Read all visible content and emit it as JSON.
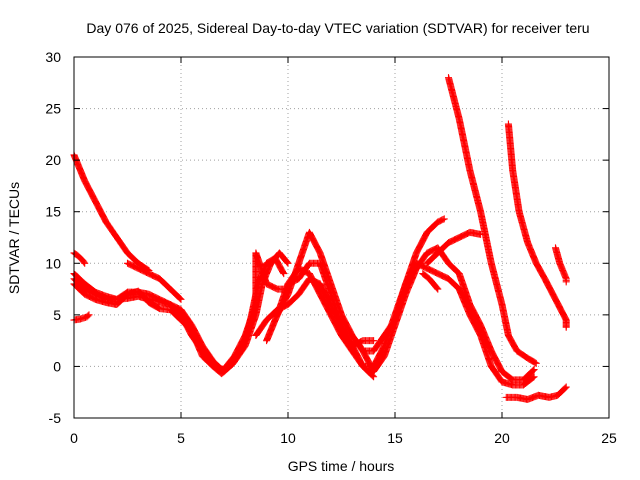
{
  "chart_data": {
    "type": "scatter",
    "title": "Day 076 of 2025, Sidereal Day-to-day VTEC variation (SDTVAR) for receiver teru",
    "xlabel": "GPS time / hours",
    "ylabel": "SDTVAR / TECUs",
    "xlim": [
      0,
      25
    ],
    "ylim": [
      -5,
      30
    ],
    "x_ticks": [
      0,
      5,
      10,
      15,
      20,
      25
    ],
    "y_ticks": [
      -5,
      0,
      5,
      10,
      15,
      20,
      25,
      30
    ],
    "x_tick_labels": [
      "0",
      "5",
      "10",
      "15",
      "20",
      "25"
    ],
    "y_tick_labels": [
      "-5",
      "0",
      "5",
      "10",
      "15",
      "20",
      "25",
      "30"
    ],
    "grid": true,
    "marker": "+",
    "color": "#ff0000",
    "series": [
      {
        "name": "track-1",
        "points": [
          [
            0,
            20.5
          ],
          [
            0.5,
            18
          ],
          [
            1,
            16
          ],
          [
            1.5,
            14
          ],
          [
            2,
            12.5
          ],
          [
            2.5,
            11
          ],
          [
            3,
            10
          ],
          [
            3.5,
            9.3
          ]
        ]
      },
      {
        "name": "track-2",
        "points": [
          [
            0,
            11
          ],
          [
            0.2,
            10.7
          ],
          [
            0.4,
            10.3
          ],
          [
            0.5,
            10
          ]
        ]
      },
      {
        "name": "track-3",
        "points": [
          [
            0,
            4.5
          ],
          [
            0.3,
            4.6
          ],
          [
            0.6,
            4.8
          ],
          [
            0.7,
            5
          ]
        ]
      },
      {
        "name": "track-4",
        "points": [
          [
            0,
            9
          ],
          [
            0.5,
            8
          ],
          [
            1,
            7.2
          ],
          [
            1.5,
            6.8
          ],
          [
            2,
            6.5
          ],
          [
            2.5,
            6.6
          ],
          [
            3,
            6.8
          ],
          [
            3.5,
            6.5
          ],
          [
            4,
            6.3
          ],
          [
            4.5,
            6
          ],
          [
            5,
            5.5
          ],
          [
            5.5,
            4
          ],
          [
            6,
            2
          ],
          [
            6.5,
            0.5
          ],
          [
            7,
            -0.5
          ],
          [
            7.5,
            0.5
          ],
          [
            8,
            2.5
          ],
          [
            8.3,
            5
          ],
          [
            8.6,
            8
          ],
          [
            9,
            10
          ],
          [
            9.4,
            10.5
          ],
          [
            9.8,
            9
          ]
        ]
      },
      {
        "name": "track-5",
        "points": [
          [
            0,
            8.5
          ],
          [
            0.5,
            7.5
          ],
          [
            1,
            7
          ],
          [
            1.5,
            6.5
          ],
          [
            2,
            6.5
          ],
          [
            2.5,
            7.2
          ],
          [
            3,
            7.2
          ],
          [
            3.5,
            7
          ],
          [
            4,
            6.5
          ],
          [
            4.5,
            6
          ],
          [
            5,
            5
          ],
          [
            5.5,
            3
          ],
          [
            6,
            1.5
          ],
          [
            6.5,
            0
          ],
          [
            6.9,
            -0.7
          ],
          [
            7.4,
            0.2
          ],
          [
            8,
            2
          ],
          [
            8.5,
            5
          ],
          [
            8.8,
            8
          ],
          [
            9.2,
            10
          ],
          [
            9.6,
            11
          ],
          [
            10,
            10
          ]
        ]
      },
      {
        "name": "track-6",
        "points": [
          [
            0,
            8
          ],
          [
            0.5,
            7
          ],
          [
            1,
            6.5
          ],
          [
            1.5,
            6.2
          ],
          [
            2,
            6
          ],
          [
            2.5,
            7
          ],
          [
            3,
            7.3
          ],
          [
            3.5,
            6.2
          ],
          [
            4,
            5.6
          ],
          [
            4.5,
            5.5
          ],
          [
            5,
            4.5
          ],
          [
            5.5,
            3.5
          ],
          [
            6,
            1
          ],
          [
            6.5,
            0
          ],
          [
            7,
            -0.3
          ],
          [
            7.5,
            1
          ],
          [
            8,
            3
          ],
          [
            8.5,
            6
          ],
          [
            8.5,
            11
          ],
          [
            9,
            8
          ],
          [
            9.5,
            7.5
          ],
          [
            10,
            7.5
          ]
        ]
      },
      {
        "name": "track-7",
        "points": [
          [
            2.5,
            10
          ],
          [
            3,
            9.5
          ],
          [
            3.5,
            9
          ],
          [
            4,
            8.5
          ],
          [
            4.5,
            7.5
          ],
          [
            5,
            6.5
          ]
        ]
      },
      {
        "name": "track-8",
        "points": [
          [
            8.5,
            3
          ],
          [
            9,
            4.5
          ],
          [
            9.5,
            5.5
          ],
          [
            10,
            6
          ],
          [
            10.5,
            7
          ],
          [
            11,
            8.5
          ],
          [
            11.5,
            8
          ],
          [
            12,
            6
          ],
          [
            12.5,
            3.5
          ],
          [
            13,
            2
          ],
          [
            13.5,
            2.5
          ],
          [
            14,
            2.5
          ]
        ]
      },
      {
        "name": "track-9",
        "points": [
          [
            9,
            2.5
          ],
          [
            9.5,
            5
          ],
          [
            10,
            8
          ],
          [
            10.5,
            9.5
          ],
          [
            11,
            9
          ],
          [
            11.5,
            7
          ],
          [
            12,
            5
          ],
          [
            12.5,
            3
          ],
          [
            13,
            1.5
          ],
          [
            13.5,
            0
          ],
          [
            14,
            -1
          ]
        ]
      },
      {
        "name": "track-10",
        "points": [
          [
            9.5,
            5
          ],
          [
            10,
            7
          ],
          [
            10.5,
            10
          ],
          [
            11,
            13
          ],
          [
            11.5,
            11
          ],
          [
            12,
            8
          ],
          [
            12.5,
            5
          ],
          [
            13,
            3
          ],
          [
            13.5,
            1.5
          ],
          [
            14,
            1.5
          ],
          [
            14.5,
            3
          ],
          [
            15,
            4.5
          ],
          [
            15.5,
            8
          ],
          [
            16,
            11
          ],
          [
            16.5,
            13
          ],
          [
            17,
            14
          ],
          [
            17.3,
            14.3
          ]
        ]
      },
      {
        "name": "track-11",
        "points": [
          [
            10,
            8
          ],
          [
            10.5,
            8.5
          ],
          [
            11,
            10
          ],
          [
            11.5,
            10
          ],
          [
            12,
            7
          ],
          [
            12.5,
            4
          ],
          [
            13,
            2
          ],
          [
            13.5,
            0
          ],
          [
            14,
            0
          ],
          [
            14.5,
            2
          ],
          [
            15,
            5
          ],
          [
            15.5,
            8
          ],
          [
            16,
            10
          ],
          [
            16.5,
            9.5
          ],
          [
            17,
            9
          ],
          [
            17.5,
            8.5
          ],
          [
            18,
            7.5
          ],
          [
            18.5,
            5
          ],
          [
            19,
            3
          ],
          [
            19.5,
            0
          ],
          [
            20,
            -1.5
          ],
          [
            20.5,
            -1.8
          ],
          [
            21,
            -1.8
          ],
          [
            21.5,
            -1
          ]
        ]
      },
      {
        "name": "track-12",
        "points": [
          [
            13.2,
            2.5
          ],
          [
            13.5,
            1.5
          ],
          [
            14,
            -0.5
          ],
          [
            14.5,
            1
          ],
          [
            15,
            4
          ],
          [
            15.5,
            7
          ],
          [
            16,
            9.5
          ],
          [
            16.5,
            11
          ],
          [
            17,
            11.5
          ],
          [
            17.5,
            10
          ],
          [
            18,
            9
          ],
          [
            18.5,
            6
          ],
          [
            19,
            4
          ],
          [
            19.5,
            1.5
          ],
          [
            20,
            -0.5
          ],
          [
            20.5,
            -1.3
          ],
          [
            21,
            -1.3
          ],
          [
            21.5,
            -0.3
          ]
        ]
      },
      {
        "name": "track-13",
        "points": [
          [
            16.5,
            10
          ],
          [
            17,
            11
          ],
          [
            17.5,
            12
          ],
          [
            18,
            12.5
          ],
          [
            18.5,
            13
          ],
          [
            19,
            12.8
          ]
        ]
      },
      {
        "name": "track-14",
        "points": [
          [
            16.3,
            9
          ],
          [
            16.6,
            8.5
          ],
          [
            17,
            7.5
          ]
        ]
      },
      {
        "name": "track-15",
        "points": [
          [
            17.5,
            28
          ],
          [
            18,
            24
          ],
          [
            18.5,
            19
          ],
          [
            19,
            15
          ],
          [
            19.5,
            10
          ],
          [
            20,
            6
          ],
          [
            20.3,
            3
          ],
          [
            20.7,
            1.5
          ],
          [
            21.2,
            0.8
          ],
          [
            21.6,
            0.3
          ]
        ]
      },
      {
        "name": "track-16",
        "points": [
          [
            20.3,
            23.5
          ],
          [
            20.5,
            19
          ],
          [
            20.8,
            15
          ],
          [
            21.2,
            12
          ],
          [
            21.6,
            10
          ],
          [
            22,
            8.5
          ],
          [
            22.5,
            6.5
          ],
          [
            23,
            4.5
          ],
          [
            23,
            3.8
          ]
        ]
      },
      {
        "name": "track-17",
        "points": [
          [
            20.2,
            -3
          ],
          [
            20.7,
            -3
          ],
          [
            21.2,
            -3.2
          ],
          [
            21.7,
            -2.8
          ],
          [
            22.2,
            -3
          ],
          [
            22.6,
            -2.8
          ],
          [
            23,
            -2
          ]
        ]
      },
      {
        "name": "track-18",
        "points": [
          [
            22.5,
            11.5
          ],
          [
            22.7,
            10
          ],
          [
            23,
            8.5
          ],
          [
            23,
            8.2
          ]
        ]
      }
    ]
  }
}
